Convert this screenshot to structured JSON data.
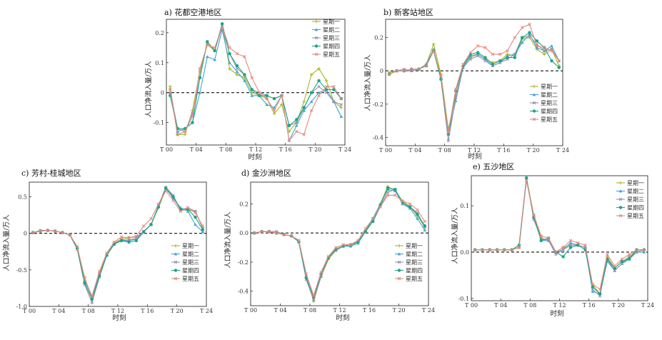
{
  "colors": [
    "#a8b826",
    "#3fa6d6",
    "#9a8fb0",
    "#1aa58a",
    "#e8877b"
  ],
  "chart_data": [
    {
      "type": "line",
      "title": "a) 花都空港地区",
      "xlabel": "时刻",
      "ylabel": "人口净流入量/万人",
      "xticks": [
        "T 00",
        "T 04",
        "T 08",
        "T 12",
        "T 16",
        "T 20",
        "T 24"
      ],
      "xticks_values": [
        0,
        4,
        8,
        12,
        16,
        20,
        24
      ],
      "yticks": [
        "-0.1",
        "0",
        "0.1",
        "0.2"
      ],
      "yticks_values": [
        -0.1,
        0,
        0.1,
        0.2
      ],
      "xlim": [
        0,
        24
      ],
      "ylim": [
        -0.175,
        0.245
      ],
      "legend_position": "top-right",
      "series": [
        {
          "name": "星期一",
          "values": [
            0.02,
            -0.14,
            -0.14,
            -0.06,
            0.07,
            0.16,
            0.14,
            0.23,
            0.08,
            0.06,
            0.05,
            0.0,
            -0.01,
            -0.02,
            -0.07,
            -0.04,
            -0.13,
            -0.1,
            -0.03,
            0.06,
            0.08,
            0.04,
            -0.03,
            -0.05
          ]
        },
        {
          "name": "星期二",
          "values": [
            0.0,
            -0.13,
            -0.12,
            -0.1,
            0.0,
            0.12,
            0.11,
            0.21,
            0.1,
            0.07,
            0.04,
            -0.01,
            -0.01,
            -0.04,
            -0.05,
            -0.01,
            -0.16,
            -0.11,
            -0.06,
            -0.03,
            0.0,
            0.01,
            -0.03,
            -0.08
          ]
        },
        {
          "name": "星期三",
          "values": [
            0.01,
            -0.12,
            -0.13,
            -0.07,
            0.05,
            0.17,
            0.14,
            0.22,
            0.13,
            0.08,
            0.06,
            0.01,
            0.0,
            -0.01,
            -0.02,
            -0.01,
            -0.11,
            -0.1,
            -0.05,
            0.0,
            0.02,
            0.0,
            -0.03,
            -0.04
          ]
        },
        {
          "name": "星期四",
          "values": [
            -0.01,
            -0.12,
            -0.12,
            -0.1,
            0.05,
            0.17,
            0.14,
            0.23,
            0.13,
            0.09,
            0.06,
            0.01,
            -0.01,
            -0.01,
            -0.02,
            -0.01,
            -0.11,
            -0.09,
            -0.05,
            0.0,
            0.04,
            0.01,
            0.01,
            -0.02
          ]
        },
        {
          "name": "星期五",
          "values": [
            0.01,
            -0.14,
            -0.13,
            -0.08,
            0.08,
            0.16,
            0.15,
            0.22,
            0.15,
            0.13,
            0.12,
            0.05,
            0.0,
            -0.02,
            -0.06,
            -0.01,
            -0.16,
            -0.13,
            -0.14,
            -0.06,
            -0.01,
            0.02,
            0.02,
            -0.02
          ]
        }
      ]
    },
    {
      "type": "line",
      "title": "b) 新客站地区",
      "xlabel": "时刻",
      "ylabel": "人口净流入量/万人",
      "xticks": [
        "T 00",
        "T 04",
        "T 08",
        "T 12",
        "T 16",
        "T 20",
        "T 24"
      ],
      "xticks_values": [
        0,
        4,
        8,
        12,
        16,
        20,
        24
      ],
      "yticks": [
        "-0.4",
        "-0.2",
        "0",
        "0.2"
      ],
      "yticks_values": [
        -0.4,
        -0.2,
        0,
        0.2
      ],
      "xlim": [
        0,
        24
      ],
      "ylim": [
        -0.45,
        0.31
      ],
      "legend_position": "bottom-right",
      "series": [
        {
          "name": "星期一",
          "values": [
            -0.01,
            0.0,
            0.0,
            0.01,
            0.01,
            0.04,
            0.16,
            -0.02,
            -0.35,
            -0.15,
            0.03,
            0.08,
            0.1,
            0.07,
            0.05,
            0.06,
            0.1,
            0.09,
            0.19,
            0.2,
            0.13,
            0.1,
            0.13,
            0.03
          ]
        },
        {
          "name": "星期二",
          "values": [
            -0.02,
            0.0,
            0.0,
            0.0,
            0.01,
            0.04,
            0.13,
            -0.04,
            -0.38,
            -0.18,
            0.02,
            0.09,
            0.1,
            0.07,
            0.03,
            0.05,
            0.09,
            0.1,
            0.17,
            0.22,
            0.14,
            0.12,
            0.15,
            0.06
          ]
        },
        {
          "name": "星期三",
          "values": [
            -0.02,
            0.0,
            0.01,
            0.0,
            0.01,
            0.03,
            0.12,
            -0.05,
            -0.42,
            -0.16,
            0.02,
            0.07,
            0.09,
            0.06,
            0.03,
            0.05,
            0.07,
            0.1,
            0.2,
            0.21,
            0.16,
            0.12,
            0.13,
            0.06
          ]
        },
        {
          "name": "星期四",
          "values": [
            -0.02,
            0.0,
            0.0,
            0.01,
            0.01,
            0.03,
            0.12,
            -0.05,
            -0.38,
            -0.12,
            0.03,
            0.1,
            0.11,
            0.08,
            0.04,
            0.06,
            0.08,
            0.08,
            0.2,
            0.23,
            0.18,
            0.14,
            0.06,
            0.02
          ]
        },
        {
          "name": "星期五",
          "values": [
            -0.02,
            0.0,
            0.0,
            0.01,
            0.01,
            0.03,
            0.12,
            -0.03,
            -0.37,
            -0.11,
            0.04,
            0.11,
            0.15,
            0.14,
            0.1,
            0.1,
            0.12,
            0.2,
            0.26,
            0.28,
            0.15,
            0.14,
            0.12,
            0.06
          ]
        }
      ]
    },
    {
      "type": "line",
      "title": "c) 芳村-桂城地区",
      "xlabel": "时刻",
      "ylabel": "人口净流入量/万人",
      "xticks": [
        "T 00",
        "T 04",
        "T 08",
        "T 12",
        "T 16",
        "T 20",
        "T 24"
      ],
      "xticks_values": [
        0,
        4,
        8,
        12,
        16,
        20,
        24
      ],
      "yticks": [
        "-1.0",
        "-0.5",
        "0",
        "0.5"
      ],
      "yticks_values": [
        -1.0,
        -0.5,
        0,
        0.5
      ],
      "xlim": [
        0,
        24
      ],
      "ylim": [
        -1.0,
        0.7
      ],
      "legend_position": "bottom-right",
      "series": [
        {
          "name": "星期一",
          "values": [
            0.01,
            0.03,
            0.04,
            0.03,
            0.01,
            -0.02,
            -0.2,
            -0.6,
            -0.9,
            -0.55,
            -0.28,
            -0.13,
            -0.08,
            -0.06,
            -0.05,
            0.02,
            0.12,
            0.35,
            0.6,
            0.5,
            0.32,
            0.32,
            0.3,
            0.08
          ]
        },
        {
          "name": "星期二",
          "values": [
            0.01,
            0.03,
            0.04,
            0.03,
            0.01,
            -0.02,
            -0.2,
            -0.65,
            -0.86,
            -0.58,
            -0.3,
            -0.15,
            -0.1,
            -0.1,
            -0.08,
            0.02,
            0.12,
            0.37,
            0.62,
            0.48,
            0.35,
            0.3,
            0.12,
            0.02
          ]
        },
        {
          "name": "星期三",
          "values": [
            0.01,
            0.04,
            0.04,
            0.03,
            0.01,
            -0.02,
            -0.22,
            -0.7,
            -0.95,
            -0.6,
            -0.3,
            -0.14,
            -0.09,
            -0.09,
            -0.07,
            0.03,
            0.12,
            0.38,
            0.63,
            0.52,
            0.32,
            0.35,
            0.3,
            0.07
          ]
        },
        {
          "name": "星期四",
          "values": [
            0.01,
            0.03,
            0.04,
            0.03,
            0.01,
            -0.02,
            -0.2,
            -0.68,
            -0.9,
            -0.58,
            -0.3,
            -0.15,
            -0.1,
            -0.12,
            -0.1,
            0.02,
            0.12,
            0.36,
            0.62,
            0.5,
            0.33,
            0.33,
            0.22,
            0.05
          ]
        },
        {
          "name": "星期五",
          "values": [
            0.01,
            0.03,
            0.04,
            0.03,
            0.01,
            -0.02,
            -0.18,
            -0.62,
            -0.86,
            -0.52,
            -0.27,
            -0.12,
            -0.05,
            -0.06,
            -0.04,
            0.1,
            0.2,
            0.4,
            0.58,
            0.45,
            0.3,
            0.35,
            0.28,
            0.1
          ]
        }
      ]
    },
    {
      "type": "line",
      "title": "d) 金沙洲地区",
      "xlabel": "时刻",
      "ylabel": "人口净流入量/万人",
      "xticks": [
        "T 00",
        "T 04",
        "T 08",
        "T 12",
        "T 16",
        "T 20",
        "T 24"
      ],
      "xticks_values": [
        0,
        4,
        8,
        12,
        16,
        20,
        24
      ],
      "yticks": [
        "-0.4",
        "-0.2",
        "0.0",
        "0.2"
      ],
      "yticks_values": [
        -0.4,
        -0.2,
        0.0,
        0.2
      ],
      "xlim": [
        0,
        24
      ],
      "ylim": [
        -0.5,
        0.35
      ],
      "legend_position": "bottom-right",
      "series": [
        {
          "name": "星期一",
          "values": [
            0.0,
            0.01,
            0.01,
            0.0,
            -0.01,
            -0.02,
            -0.06,
            -0.3,
            -0.47,
            -0.3,
            -0.18,
            -0.12,
            -0.09,
            -0.09,
            -0.06,
            0.02,
            0.1,
            0.2,
            0.32,
            0.29,
            0.22,
            0.18,
            0.12,
            0.04
          ]
        },
        {
          "name": "星期二",
          "values": [
            0.0,
            0.01,
            0.01,
            0.0,
            -0.01,
            -0.02,
            -0.06,
            -0.3,
            -0.45,
            -0.28,
            -0.17,
            -0.11,
            -0.09,
            -0.09,
            -0.07,
            0.01,
            0.1,
            0.2,
            0.3,
            0.29,
            0.2,
            0.17,
            0.1,
            0.02
          ]
        },
        {
          "name": "星期三",
          "values": [
            0.0,
            0.01,
            0.01,
            0.01,
            -0.01,
            -0.02,
            -0.06,
            -0.32,
            -0.46,
            -0.3,
            -0.17,
            -0.12,
            -0.09,
            -0.08,
            -0.06,
            0.01,
            0.08,
            0.18,
            0.28,
            0.3,
            0.2,
            0.18,
            0.14,
            0.04
          ]
        },
        {
          "name": "星期四",
          "values": [
            0.0,
            0.01,
            0.01,
            0.0,
            -0.01,
            -0.02,
            -0.06,
            -0.31,
            -0.44,
            -0.28,
            -0.17,
            -0.11,
            -0.09,
            -0.08,
            -0.06,
            0.01,
            0.08,
            0.19,
            0.31,
            0.3,
            0.21,
            0.18,
            0.13,
            0.05
          ]
        },
        {
          "name": "星期五",
          "values": [
            0.0,
            0.01,
            0.01,
            0.0,
            -0.01,
            -0.02,
            -0.05,
            -0.28,
            -0.43,
            -0.27,
            -0.16,
            -0.1,
            -0.08,
            -0.08,
            -0.05,
            0.03,
            0.1,
            0.18,
            0.26,
            0.26,
            0.22,
            0.2,
            0.16,
            0.08
          ]
        }
      ]
    },
    {
      "type": "line",
      "title": "e) 五沙地区",
      "xlabel": "时刻",
      "ylabel": "人口净流入量/万人",
      "xticks": [
        "T 00",
        "T 04",
        "T 08",
        "T 12",
        "T 16",
        "T 20",
        "T 24"
      ],
      "xticks_values": [
        0,
        4,
        8,
        12,
        16,
        20,
        24
      ],
      "yticks": [
        "-0.1",
        "0.0",
        "0.1"
      ],
      "yticks_values": [
        -0.1,
        0.0,
        0.1
      ],
      "xlim": [
        0,
        24
      ],
      "ylim": [
        -0.105,
        0.165
      ],
      "legend_position": "top-right",
      "series": [
        {
          "name": "星期一",
          "values": [
            0.005,
            0.005,
            0.005,
            0.005,
            0.005,
            0.005,
            0.01,
            0.16,
            0.08,
            0.03,
            0.025,
            0.0,
            0.01,
            0.015,
            0.015,
            0.01,
            -0.07,
            -0.09,
            -0.01,
            -0.035,
            -0.02,
            -0.01,
            0.005,
            0.005
          ]
        },
        {
          "name": "星期二",
          "values": [
            0.005,
            0.005,
            0.005,
            0.005,
            0.005,
            0.005,
            0.015,
            0.155,
            0.075,
            0.025,
            0.025,
            0.0,
            0.005,
            0.02,
            0.015,
            0.01,
            -0.085,
            -0.09,
            -0.02,
            -0.04,
            -0.025,
            -0.015,
            0.0,
            0.0
          ]
        },
        {
          "name": "星期三",
          "values": [
            0.005,
            0.005,
            0.005,
            0.005,
            0.005,
            0.005,
            0.01,
            0.16,
            0.07,
            0.03,
            0.025,
            -0.005,
            0.005,
            0.015,
            0.015,
            0.01,
            -0.08,
            -0.095,
            -0.015,
            -0.04,
            -0.025,
            -0.01,
            0.0,
            0.005
          ]
        },
        {
          "name": "星期四",
          "values": [
            0.005,
            0.005,
            0.005,
            0.005,
            0.005,
            0.005,
            0.015,
            0.16,
            0.075,
            0.025,
            0.03,
            0.0,
            -0.01,
            0.01,
            0.015,
            0.005,
            -0.075,
            -0.09,
            -0.015,
            -0.035,
            -0.02,
            -0.015,
            0.005,
            0.005
          ]
        },
        {
          "name": "星期五",
          "values": [
            0.005,
            0.005,
            0.005,
            0.005,
            0.005,
            0.005,
            0.01,
            0.155,
            0.08,
            0.035,
            0.03,
            0.0,
            0.01,
            0.025,
            0.02,
            0.015,
            -0.07,
            -0.08,
            -0.005,
            -0.03,
            -0.015,
            -0.005,
            0.005,
            0.005
          ]
        }
      ]
    }
  ]
}
